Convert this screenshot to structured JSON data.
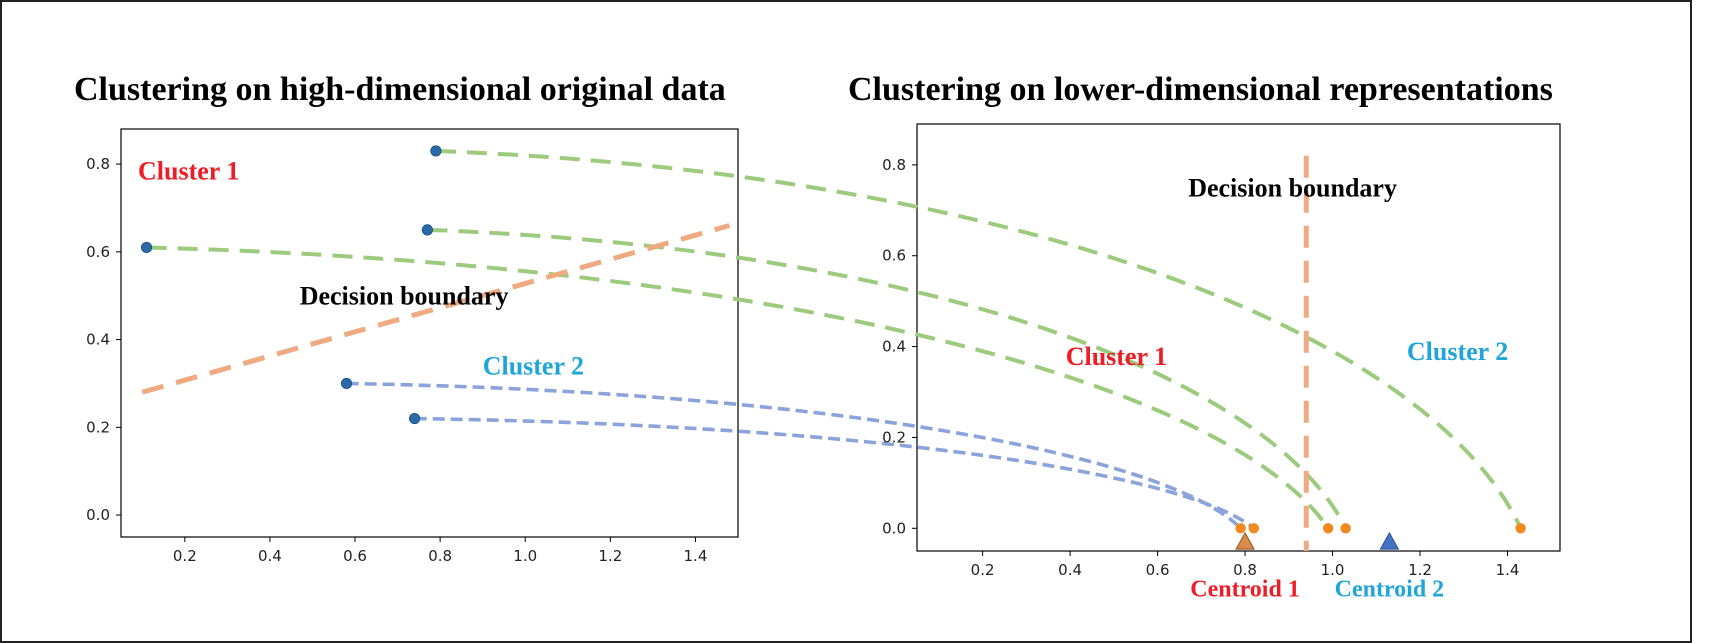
{
  "colors": {
    "red": "#ee1c25",
    "cyan": "#1fa5dc",
    "black": "#000000",
    "green_dashed": "#9ccb7d",
    "blue_dashed": "#8aa3da",
    "orange_boundary": "#f0aa80",
    "point_blue": "#2b6aa8",
    "point_orange": "#f2891f",
    "centroid_orange": "#d98b4b",
    "centroid_blue": "#4472c4"
  },
  "chart_data": [
    {
      "type": "scatter",
      "title": "Clustering on high-dimensional original data",
      "xlim": [
        0.05,
        1.5
      ],
      "ylim": [
        -0.05,
        0.88
      ],
      "xticks": [
        0.2,
        0.4,
        0.6,
        0.8,
        1.0,
        1.2,
        1.4
      ],
      "xtick_labels": [
        "0.2",
        "0.4",
        "0.6",
        "0.8",
        "1.0",
        "1.2",
        "1.4"
      ],
      "yticks": [
        0.0,
        0.2,
        0.4,
        0.6,
        0.8
      ],
      "ytick_labels": [
        "0.0",
        "0.2",
        "0.4",
        "0.6",
        "0.8"
      ],
      "grid": false,
      "points": [
        {
          "x": 0.79,
          "y": 0.83
        },
        {
          "x": 0.77,
          "y": 0.65
        },
        {
          "x": 0.11,
          "y": 0.61
        },
        {
          "x": 0.58,
          "y": 0.3
        },
        {
          "x": 0.74,
          "y": 0.22
        }
      ],
      "decision_boundary": {
        "x": [
          0.1,
          1.48
        ],
        "y": [
          0.28,
          0.66
        ]
      },
      "annotations": [
        {
          "id": "cluster1",
          "text": "Cluster 1",
          "x": 0.09,
          "y": 0.765,
          "color": "red"
        },
        {
          "id": "boundary",
          "text": "Decision boundary",
          "x": 0.47,
          "y": 0.48,
          "color": "black"
        },
        {
          "id": "cluster2",
          "text": "Cluster 2",
          "x": 0.9,
          "y": 0.32,
          "color": "cyan"
        }
      ]
    },
    {
      "type": "scatter",
      "title": "Clustering on lower-dimensional representations",
      "xlim": [
        0.05,
        1.52
      ],
      "ylim": [
        -0.05,
        0.89
      ],
      "xticks": [
        0.2,
        0.4,
        0.6,
        0.8,
        1.0,
        1.2,
        1.4
      ],
      "xtick_labels": [
        "0.2",
        "0.4",
        "0.6",
        "0.8",
        "1.0",
        "1.2",
        "1.4"
      ],
      "yticks": [
        0.0,
        0.2,
        0.4,
        0.6,
        0.8
      ],
      "ytick_labels": [
        "0.0",
        "0.2",
        "0.4",
        "0.6",
        "0.8"
      ],
      "grid": false,
      "points": [
        {
          "x": 0.79,
          "y": 0.0
        },
        {
          "x": 0.82,
          "y": 0.0
        },
        {
          "x": 0.99,
          "y": 0.0
        },
        {
          "x": 1.03,
          "y": 0.0
        },
        {
          "x": 1.43,
          "y": 0.0
        }
      ],
      "centroids": [
        {
          "name": "Centroid 1",
          "x": 0.8,
          "y": -0.03,
          "color": "centroid_orange"
        },
        {
          "name": "Centroid 2",
          "x": 1.13,
          "y": -0.03,
          "color": "centroid_blue"
        }
      ],
      "decision_boundary_x": 0.94,
      "annotations": [
        {
          "id": "boundary",
          "text": "Decision boundary",
          "x": 0.67,
          "y": 0.73,
          "color": "black"
        },
        {
          "id": "cluster1",
          "text": "Cluster 1",
          "x": 0.39,
          "y": 0.36,
          "color": "red"
        },
        {
          "id": "cluster2",
          "text": "Cluster 2",
          "x": 1.17,
          "y": 0.37,
          "color": "cyan"
        },
        {
          "id": "centroid1",
          "text": "Centroid 1",
          "x": 0.8,
          "y": -0.15,
          "color": "red"
        },
        {
          "id": "centroid2",
          "text": "Centroid 2",
          "x": 1.13,
          "y": -0.15,
          "color": "cyan"
        }
      ]
    }
  ],
  "mappings": [
    {
      "from": 0,
      "to": 4,
      "color": "green_dashed"
    },
    {
      "from": 1,
      "to": 3,
      "color": "green_dashed"
    },
    {
      "from": 2,
      "to": 2,
      "color": "green_dashed"
    },
    {
      "from": 3,
      "to": 0,
      "color": "blue_dashed"
    },
    {
      "from": 4,
      "to": 1,
      "color": "blue_dashed"
    }
  ]
}
